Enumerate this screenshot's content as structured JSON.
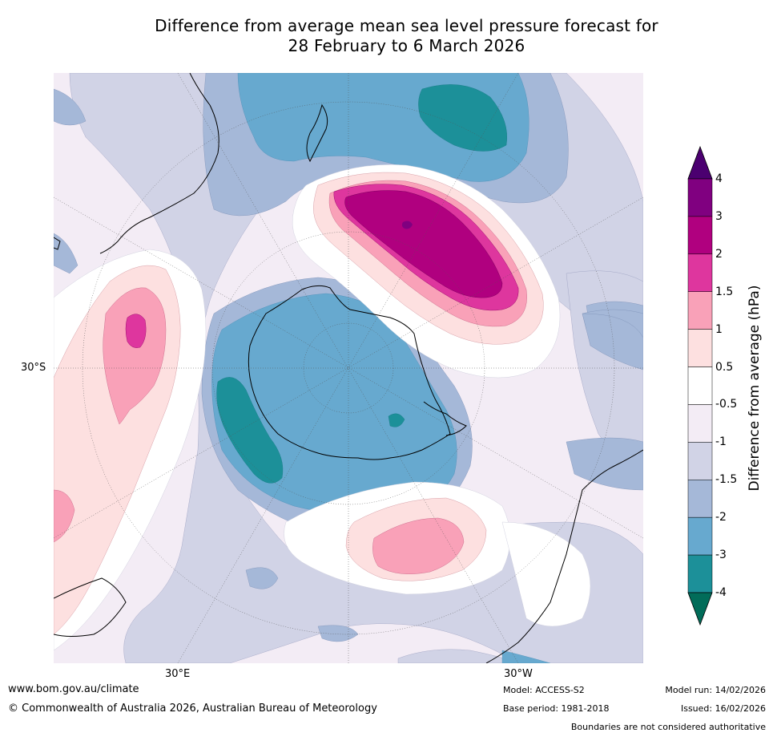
{
  "title": {
    "line1": "Difference from average mean sea level pressure forecast for",
    "line2": "28 February to 6 March 2026"
  },
  "map": {
    "lat_label": "30°S",
    "lon_labels": [
      "30°E",
      "30°W"
    ]
  },
  "colorbar": {
    "title": "Difference from average (hPa)",
    "ticks": [
      "4",
      "3",
      "2",
      "1.5",
      "1",
      "0.5",
      "-0.5",
      "-1",
      "-1.5",
      "-2",
      "-3",
      "-4"
    ],
    "colors": [
      "#4b0070",
      "#800080",
      "#b0007f",
      "#de369e",
      "#f9a1b8",
      "#fde0e0",
      "#ffffff",
      "#f3ecf5",
      "#d1d3e6",
      "#a5b8d8",
      "#67a9cf",
      "#1c9099",
      "#016c59"
    ]
  },
  "footer": {
    "url": "www.bom.gov.au/climate",
    "copyright": "© Commonwealth of Australia 2026, Australian Bureau of Meteorology",
    "model": "Model: ACCESS-S2",
    "base_period": "Base period: 1981-2018",
    "model_run": "Model run: 14/02/2026",
    "issued": "Issued: 16/02/2026",
    "disclaimer": "Boundaries are not considered authoritative"
  }
}
